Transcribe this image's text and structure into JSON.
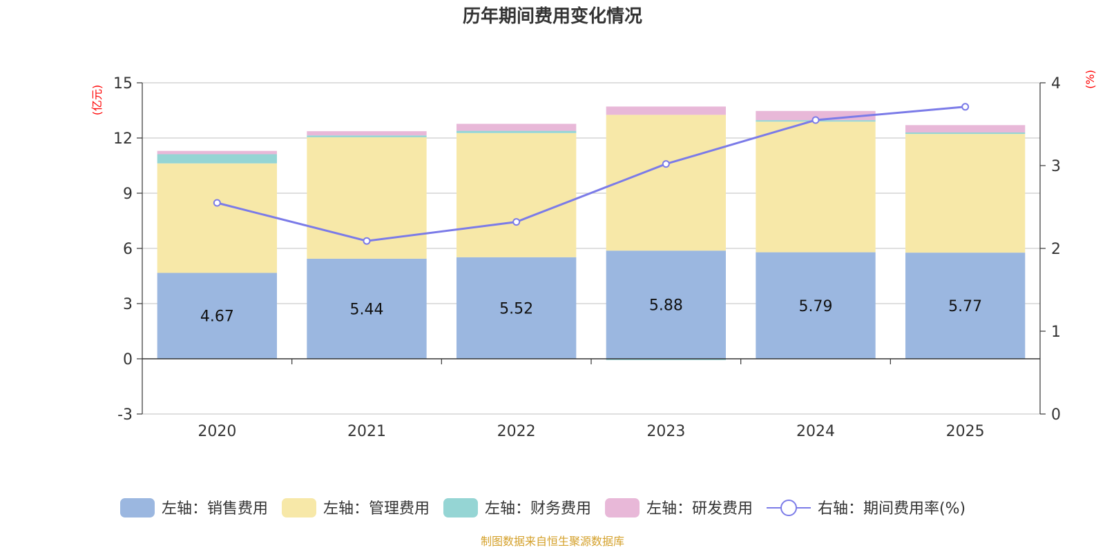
{
  "chart_data": {
    "type": "bar",
    "title": "历年期间费用变化情况",
    "categories": [
      "2020",
      "2021",
      "2022",
      "2023",
      "2024",
      "2025"
    ],
    "left_axis": {
      "unit": "(亿元)",
      "ylim": [
        -3,
        15
      ],
      "ticks": [
        -3,
        0,
        3,
        6,
        9,
        12,
        15
      ]
    },
    "right_axis": {
      "unit": "(%)",
      "ylim": [
        0,
        4
      ],
      "ticks": [
        0,
        1,
        2,
        3,
        4
      ]
    },
    "series": [
      {
        "name": "左轴：销售费用",
        "type": "bar",
        "stack": "total",
        "axis": "left",
        "color": "#9bb7e0",
        "values": [
          4.67,
          5.44,
          5.52,
          5.88,
          5.79,
          5.77
        ],
        "show_labels": true
      },
      {
        "name": "左轴：管理费用",
        "type": "bar",
        "stack": "total",
        "axis": "left",
        "color": "#f7e8a8",
        "values": [
          5.95,
          6.6,
          6.75,
          7.38,
          7.1,
          6.45
        ]
      },
      {
        "name": "左轴：财务费用",
        "type": "bar",
        "stack": "total",
        "axis": "left",
        "color": "#95d5d4",
        "values": [
          0.5,
          0.1,
          0.12,
          -0.07,
          0.08,
          0.08
        ]
      },
      {
        "name": "左轴：研发费用",
        "type": "bar",
        "stack": "total",
        "axis": "left",
        "color": "#e8b8d8",
        "values": [
          0.18,
          0.23,
          0.38,
          0.45,
          0.5,
          0.4
        ]
      },
      {
        "name": "右轴：期间费用率(%)",
        "type": "line",
        "axis": "right",
        "color": "#7b7be8",
        "values": [
          2.55,
          2.09,
          2.32,
          3.02,
          3.55,
          3.71
        ]
      }
    ],
    "source": "制图数据来自恒生聚源数据库"
  }
}
